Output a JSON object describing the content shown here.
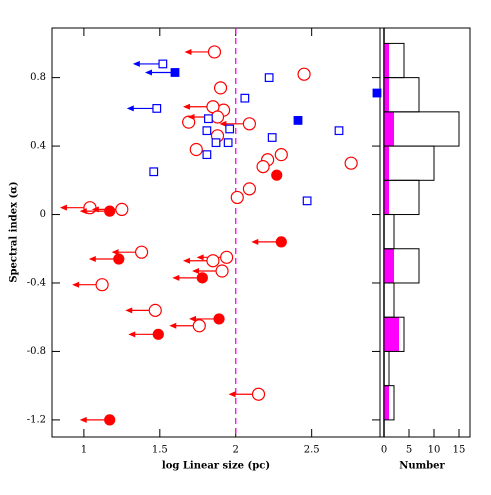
{
  "chart_data": [
    {
      "type": "scatter",
      "xlabel": "log Linear size (pc)",
      "ylabel": "Spectral index (α)",
      "xlim": [
        0.79,
        2.95
      ],
      "ylim": [
        -1.3,
        1.09
      ],
      "xticks": [
        1,
        1.5,
        2,
        2.5
      ],
      "yticks": [
        -1.2,
        -0.8,
        -0.4,
        0,
        0.4,
        0.8
      ],
      "vline": 2,
      "vline_color": "#ff00ff",
      "series": [
        {
          "marker": "circle",
          "filled": false,
          "upper_limit": false,
          "color": "#ff0000",
          "x": [
            2.45,
            1.9,
            1.92,
            1.69,
            1.88,
            1.74,
            2.3,
            2.21,
            2.18,
            2.09,
            2.01,
            2.76
          ],
          "y": [
            0.82,
            0.74,
            0.61,
            0.54,
            0.46,
            0.38,
            0.35,
            0.32,
            0.28,
            0.15,
            0.1,
            0.3
          ]
        },
        {
          "marker": "circle",
          "filled": false,
          "upper_limit": true,
          "color": "#ff0000",
          "x": [
            1.86,
            1.85,
            1.88,
            2.09,
            1.04,
            1.25,
            1.38,
            1.12,
            1.94,
            1.91,
            1.85,
            1.47,
            1.76,
            2.15
          ],
          "y": [
            0.95,
            0.63,
            0.57,
            0.53,
            0.04,
            0.03,
            -0.22,
            -0.41,
            -0.25,
            -0.33,
            -0.27,
            -0.56,
            -0.65,
            -1.05
          ]
        },
        {
          "marker": "circle",
          "filled": true,
          "upper_limit": false,
          "color": "#ff0000",
          "x": [
            2.27
          ],
          "y": [
            0.23
          ]
        },
        {
          "marker": "circle",
          "filled": true,
          "upper_limit": true,
          "color": "#ff0000",
          "x": [
            2.3,
            1.17,
            1.23,
            1.78,
            1.89,
            1.49,
            1.17
          ],
          "y": [
            -0.16,
            0.02,
            -0.26,
            -0.37,
            -0.61,
            -0.7,
            -1.2
          ]
        },
        {
          "marker": "square",
          "filled": false,
          "upper_limit": false,
          "color": "#0000ff",
          "x": [
            2.22,
            2.06,
            1.82,
            1.96,
            1.81,
            2.24,
            1.95,
            1.87,
            1.81,
            1.46,
            2.47,
            2.68
          ],
          "y": [
            0.8,
            0.68,
            0.56,
            0.5,
            0.49,
            0.45,
            0.42,
            0.42,
            0.35,
            0.25,
            0.08,
            0.49
          ]
        },
        {
          "marker": "square",
          "filled": false,
          "upper_limit": true,
          "color": "#0000ff",
          "x": [
            1.52,
            1.48
          ],
          "y": [
            0.88,
            0.62
          ]
        },
        {
          "marker": "square",
          "filled": true,
          "upper_limit": false,
          "color": "#0000ff",
          "x": [
            2.41,
            2.93
          ],
          "y": [
            0.55,
            0.71
          ]
        },
        {
          "marker": "square",
          "filled": true,
          "upper_limit": true,
          "color": "#0000ff",
          "x": [
            1.6
          ],
          "y": [
            0.83
          ]
        }
      ]
    },
    {
      "type": "histogram",
      "orientation": "horizontal",
      "xlabel": "Number",
      "xlim": [
        -0.8,
        17.2
      ],
      "xticks": [
        0,
        5,
        10,
        15
      ],
      "ylim": [
        -1.3,
        1.09
      ],
      "bins": [
        -1.2,
        -1.0,
        -0.8,
        -0.6,
        -0.4,
        -0.2,
        0,
        0.2,
        0.4,
        0.6,
        0.8,
        1.0
      ],
      "series": [
        {
          "color": "#000000",
          "filled": false,
          "values": [
            2,
            1,
            4,
            2,
            7,
            2,
            7,
            10,
            15,
            7,
            4
          ]
        },
        {
          "color": "#ff00ff",
          "filled": true,
          "values": [
            1,
            0,
            3,
            0,
            2,
            0,
            1,
            1,
            2,
            1,
            1
          ]
        }
      ]
    }
  ]
}
